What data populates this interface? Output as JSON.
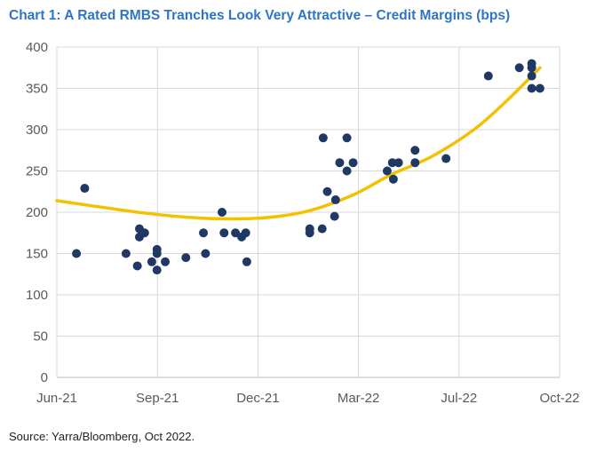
{
  "chart_data": {
    "type": "scatter",
    "title": "Chart 1: A Rated RMBS Tranches Look Very Attractive – Credit Margins (bps)",
    "source": "Source: Yarra/Bloomberg, Oct 2022.",
    "xlabel": "",
    "ylabel": "",
    "x_ticks": [
      "Jun-21",
      "Sep-21",
      "Dec-21",
      "Mar-22",
      "Jul-22",
      "Oct-22"
    ],
    "xlim": [
      "2021-06-01",
      "2022-10-01"
    ],
    "ylim": [
      0,
      400
    ],
    "y_ticks": [
      0,
      50,
      100,
      150,
      200,
      250,
      300,
      350,
      400
    ],
    "grid": true,
    "colors": {
      "points": "#1f3864",
      "trend": "#f2c100",
      "grid": "#d9d9d9",
      "title": "#2f75c4"
    },
    "series": [
      {
        "type": "scatter",
        "points": [
          [
            "2021-06-20",
            150
          ],
          [
            "2021-06-28",
            229
          ],
          [
            "2021-08-07",
            150
          ],
          [
            "2021-08-18",
            135
          ],
          [
            "2021-08-20",
            170
          ],
          [
            "2021-08-20",
            180
          ],
          [
            "2021-08-25",
            175
          ],
          [
            "2021-09-01",
            140
          ],
          [
            "2021-09-06",
            150
          ],
          [
            "2021-09-06",
            155
          ],
          [
            "2021-09-06",
            130
          ],
          [
            "2021-09-14",
            140
          ],
          [
            "2021-10-04",
            145
          ],
          [
            "2021-10-21",
            175
          ],
          [
            "2021-10-23",
            150
          ],
          [
            "2021-11-08",
            200
          ],
          [
            "2021-11-10",
            175
          ],
          [
            "2021-11-21",
            175
          ],
          [
            "2021-11-27",
            170
          ],
          [
            "2021-12-01",
            175
          ],
          [
            "2021-12-02",
            140
          ],
          [
            "2022-02-01",
            175
          ],
          [
            "2022-02-01",
            180
          ],
          [
            "2022-02-13",
            180
          ],
          [
            "2022-02-14",
            290
          ],
          [
            "2022-02-18",
            225
          ],
          [
            "2022-02-25",
            195
          ],
          [
            "2022-02-26",
            215
          ],
          [
            "2022-03-02",
            260
          ],
          [
            "2022-03-09",
            290
          ],
          [
            "2022-03-09",
            250
          ],
          [
            "2022-03-15",
            260
          ],
          [
            "2022-04-17",
            250
          ],
          [
            "2022-04-22",
            260
          ],
          [
            "2022-04-23",
            240
          ],
          [
            "2022-04-28",
            260
          ],
          [
            "2022-05-14",
            275
          ],
          [
            "2022-05-14",
            260
          ],
          [
            "2022-06-13",
            265
          ],
          [
            "2022-07-24",
            365
          ],
          [
            "2022-08-23",
            375
          ],
          [
            "2022-09-04",
            380
          ],
          [
            "2022-09-04",
            375
          ],
          [
            "2022-09-04",
            365
          ],
          [
            "2022-09-04",
            350
          ],
          [
            "2022-09-12",
            350
          ]
        ]
      },
      {
        "type": "line",
        "points": [
          [
            "2021-06-01",
            214
          ],
          [
            "2021-07-15",
            206
          ],
          [
            "2021-08-25",
            199
          ],
          [
            "2021-10-05",
            194
          ],
          [
            "2021-11-15",
            192
          ],
          [
            "2021-12-25",
            194
          ],
          [
            "2022-02-01",
            202
          ],
          [
            "2022-03-15",
            221
          ],
          [
            "2022-04-20",
            245
          ],
          [
            "2022-05-31",
            268
          ],
          [
            "2022-07-10",
            300
          ],
          [
            "2022-08-10",
            334
          ],
          [
            "2022-09-12",
            375
          ]
        ]
      }
    ]
  }
}
